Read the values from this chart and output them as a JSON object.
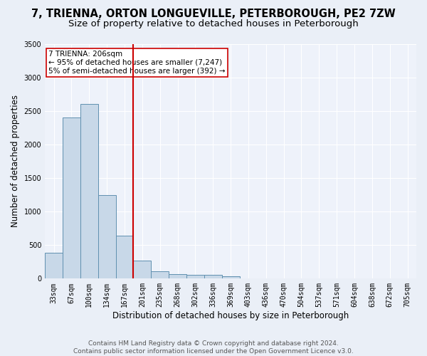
{
  "title": "7, TRIENNA, ORTON LONGUEVILLE, PETERBOROUGH, PE2 7ZW",
  "subtitle": "Size of property relative to detached houses in Peterborough",
  "xlabel": "Distribution of detached houses by size in Peterborough",
  "ylabel": "Number of detached properties",
  "categories": [
    "33sqm",
    "67sqm",
    "100sqm",
    "134sqm",
    "167sqm",
    "201sqm",
    "235sqm",
    "268sqm",
    "302sqm",
    "336sqm",
    "369sqm",
    "403sqm",
    "436sqm",
    "470sqm",
    "504sqm",
    "537sqm",
    "571sqm",
    "604sqm",
    "638sqm",
    "672sqm",
    "705sqm"
  ],
  "values": [
    390,
    2400,
    2600,
    1250,
    640,
    270,
    110,
    70,
    60,
    55,
    40,
    0,
    0,
    0,
    0,
    0,
    0,
    0,
    0,
    0,
    0
  ],
  "bar_color": "#c8d8e8",
  "bar_edge_color": "#6090b0",
  "vline_x_idx": 5,
  "vline_color": "#cc0000",
  "annotation_text": "7 TRIENNA: 206sqm\n← 95% of detached houses are smaller (7,247)\n5% of semi-detached houses are larger (392) →",
  "annotation_box_color": "#ffffff",
  "annotation_box_edge": "#cc0000",
  "ylim": [
    0,
    3500
  ],
  "yticks": [
    0,
    500,
    1000,
    1500,
    2000,
    2500,
    3000,
    3500
  ],
  "background_color": "#eaeff7",
  "plot_background": "#eef2fa",
  "grid_color": "#ffffff",
  "footer": "Contains HM Land Registry data © Crown copyright and database right 2024.\nContains public sector information licensed under the Open Government Licence v3.0.",
  "title_fontsize": 10.5,
  "subtitle_fontsize": 9.5,
  "xlabel_fontsize": 8.5,
  "ylabel_fontsize": 8.5,
  "tick_fontsize": 7,
  "footer_fontsize": 6.5,
  "annot_fontsize": 7.5
}
